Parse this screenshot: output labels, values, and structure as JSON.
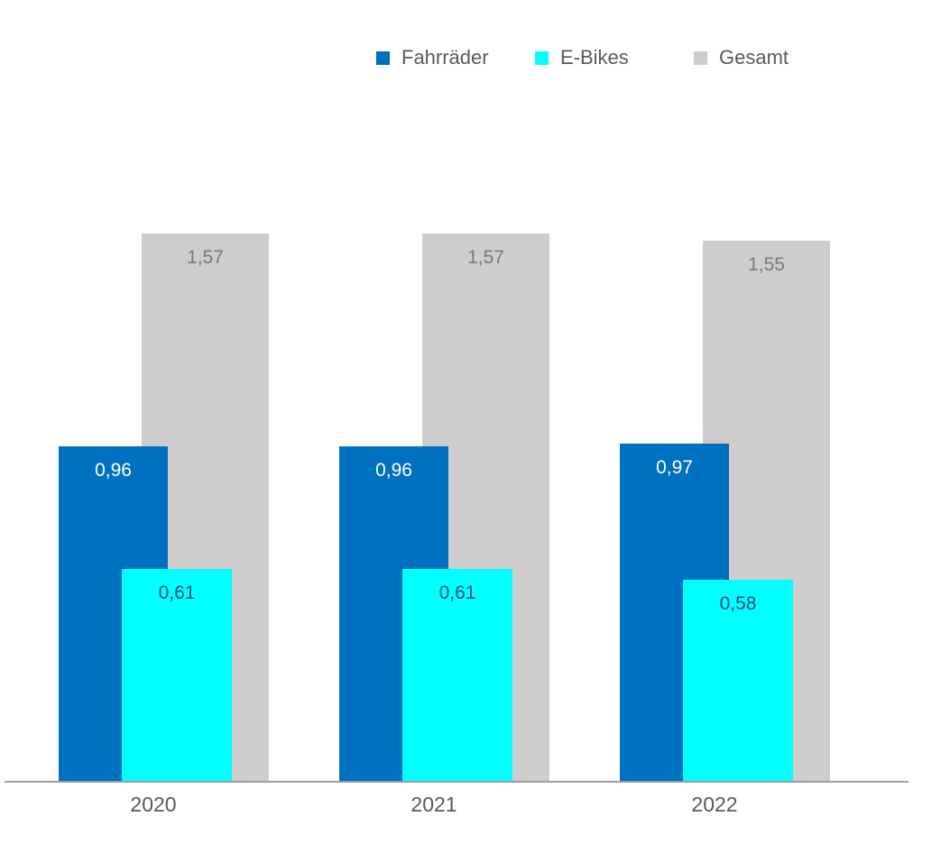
{
  "chart_data": {
    "type": "bar",
    "title": "",
    "categories": [
      "2020",
      "2021",
      "2022"
    ],
    "series": [
      {
        "name": "Fahrräder",
        "color": "#0070C0",
        "label_color": "#FFFFFF",
        "values": [
          0.96,
          0.96,
          0.97
        ],
        "labels": [
          "0,96",
          "0,96",
          "0,97"
        ]
      },
      {
        "name": "E-Bikes",
        "color": "#00FFFF",
        "label_color": "#1F4E79",
        "values": [
          0.61,
          0.61,
          0.58
        ],
        "labels": [
          "0,61",
          "0,61",
          "0,58"
        ]
      },
      {
        "name": "Gesamt",
        "color": "#CECCCD",
        "label_color": "#7A7A7A",
        "values": [
          1.57,
          1.57,
          1.55
        ],
        "labels": [
          "1,57",
          "1,57",
          "1,55"
        ]
      }
    ],
    "legend_position": "top",
    "grid": false,
    "y_axis_visible": false,
    "ylim": [
      0,
      1.6
    ],
    "xlabel": "",
    "ylabel": "",
    "decimal_separator": ",",
    "axis_line_color": "#9E9E9E",
    "category_label_color": "#595959",
    "legend_text_color": "#595959",
    "background_color": "#FFFFFF"
  }
}
